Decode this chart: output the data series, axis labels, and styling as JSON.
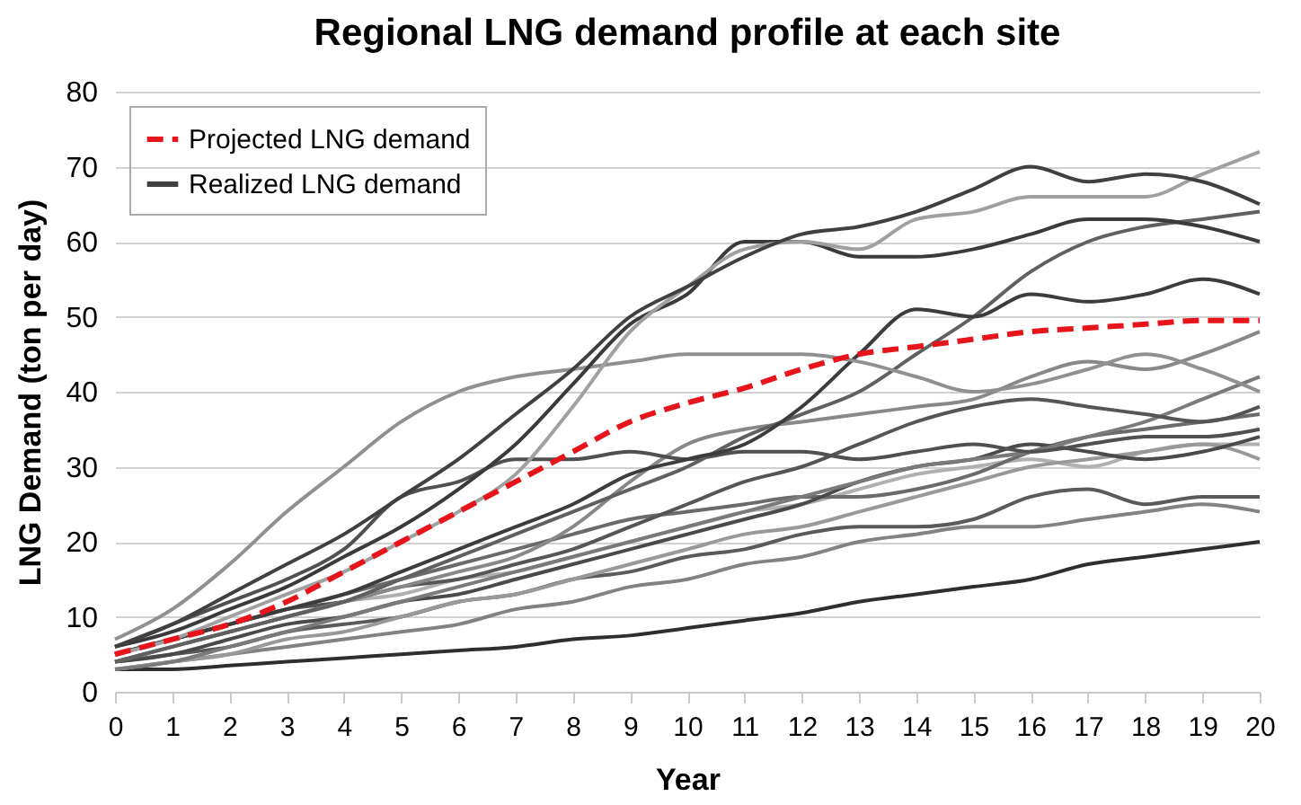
{
  "chart_data": {
    "type": "line",
    "title": "Regional LNG demand profile at each site",
    "xlabel": "Year",
    "ylabel": "LNG Demand (ton per day)",
    "x": [
      0,
      1,
      2,
      3,
      4,
      5,
      6,
      7,
      8,
      9,
      10,
      11,
      12,
      13,
      14,
      15,
      16,
      17,
      18,
      19,
      20
    ],
    "xlim": [
      0,
      20
    ],
    "xticks": [
      0,
      1,
      2,
      3,
      4,
      5,
      6,
      7,
      8,
      9,
      10,
      11,
      12,
      13,
      14,
      15,
      16,
      17,
      18,
      19,
      20
    ],
    "ylim": [
      0,
      80
    ],
    "yticks": [
      0,
      10,
      20,
      30,
      40,
      50,
      60,
      70,
      80
    ],
    "grid": "y",
    "legend": "top left",
    "series": [
      {
        "name": "Projected LNG demand",
        "color": "#e8141b",
        "line_style": "dashed",
        "values": [
          5,
          7,
          9,
          12,
          16,
          20,
          24,
          28,
          32,
          36,
          38.5,
          40.5,
          43,
          45,
          46,
          47,
          48,
          48.5,
          49,
          49.5,
          49.5
        ]
      },
      {
        "name": "Realized LNG demand",
        "color": "#404040",
        "values": [
          6,
          9,
          13,
          17,
          21,
          26,
          31,
          37,
          43,
          50,
          54,
          58,
          61,
          62,
          64,
          67,
          70,
          68,
          69,
          68,
          65
        ]
      },
      {
        "color": "#a0a0a0",
        "values": [
          5,
          7,
          10,
          13,
          16,
          20,
          24,
          29,
          38,
          48,
          54,
          59,
          60,
          59,
          63,
          64,
          66,
          66,
          66,
          69,
          72
        ]
      },
      {
        "color": "#3a3a3a",
        "values": [
          6,
          8,
          11,
          14,
          18,
          22,
          27,
          33,
          41,
          49,
          53,
          60,
          60,
          58,
          58,
          59,
          61,
          63,
          63,
          62,
          60
        ]
      },
      {
        "color": "#909090",
        "values": [
          7,
          11,
          17,
          24,
          30,
          36,
          40,
          42,
          43,
          44,
          45,
          45,
          45,
          44,
          42,
          40,
          41,
          43,
          45,
          43,
          40
        ]
      },
      {
        "color": "#3c3c3c",
        "values": [
          5,
          7,
          9,
          11,
          13,
          16,
          19,
          22,
          25,
          29,
          31,
          33,
          38,
          45,
          51,
          50,
          53,
          52,
          53,
          55,
          53
        ]
      },
      {
        "color": "#606060",
        "values": [
          4,
          6,
          8,
          10,
          12,
          15,
          18,
          21,
          24,
          27,
          30,
          34,
          37,
          40,
          45,
          50,
          56,
          60,
          62,
          63,
          64
        ]
      },
      {
        "color": "#505050",
        "values": [
          6,
          9,
          12,
          15,
          19,
          26,
          28,
          31,
          31,
          32,
          31,
          32,
          32,
          31,
          32,
          33,
          32,
          33,
          34,
          34,
          35
        ]
      },
      {
        "color": "#888888",
        "values": [
          4,
          6,
          8,
          10,
          12,
          14,
          16,
          18,
          22,
          28,
          33,
          35,
          36,
          37,
          38,
          39,
          42,
          44,
          43,
          45,
          48
        ]
      },
      {
        "color": "#555555",
        "values": [
          5,
          7,
          9,
          11,
          12,
          14,
          15,
          17,
          19,
          22,
          25,
          28,
          30,
          33,
          36,
          38,
          39,
          38,
          37,
          36,
          38
        ]
      },
      {
        "color": "#7a7a7a",
        "values": [
          3,
          4,
          6,
          8,
          10,
          12,
          14,
          16,
          18,
          20,
          22,
          24,
          26,
          28,
          30,
          31,
          32,
          34,
          36,
          39,
          42
        ]
      },
      {
        "color": "#4a4a4a",
        "values": [
          4,
          5,
          7,
          9,
          10,
          12,
          13,
          15,
          17,
          19,
          21,
          23,
          25,
          28,
          30,
          31,
          33,
          32,
          31,
          32,
          34
        ]
      },
      {
        "color": "#999999",
        "values": [
          3,
          4,
          5,
          7,
          8,
          10,
          12,
          13,
          15,
          17,
          19,
          21,
          22,
          24,
          26,
          28,
          30,
          31,
          32,
          33,
          31
        ]
      },
      {
        "color": "#5a5a5a",
        "values": [
          4,
          5,
          6,
          8,
          9,
          10,
          12,
          13,
          15,
          16,
          18,
          19,
          21,
          22,
          22,
          23,
          26,
          27,
          25,
          26,
          26
        ]
      },
      {
        "color": "#828282",
        "values": [
          3,
          4,
          5,
          6,
          7,
          8,
          9,
          11,
          12,
          14,
          15,
          17,
          18,
          20,
          21,
          22,
          22,
          23,
          24,
          25,
          24
        ]
      },
      {
        "color": "#2e2e2e",
        "values": [
          3,
          3,
          3.5,
          4,
          4.5,
          5,
          5.5,
          6,
          7,
          7.5,
          8.5,
          9.5,
          10.5,
          12,
          13,
          14,
          15,
          17,
          18,
          19,
          20
        ]
      },
      {
        "color": "#6a6a6a",
        "values": [
          5,
          7,
          9,
          11,
          13,
          15,
          17,
          19,
          21,
          23,
          24,
          25,
          26,
          26,
          27,
          29,
          32,
          34,
          35,
          36,
          37
        ]
      },
      {
        "color": "#b0b0b0",
        "values": [
          4,
          6,
          8,
          10,
          12,
          13,
          15,
          16,
          18,
          20,
          22,
          24,
          25,
          27,
          29,
          30,
          31,
          30,
          32,
          33,
          33
        ]
      }
    ]
  }
}
